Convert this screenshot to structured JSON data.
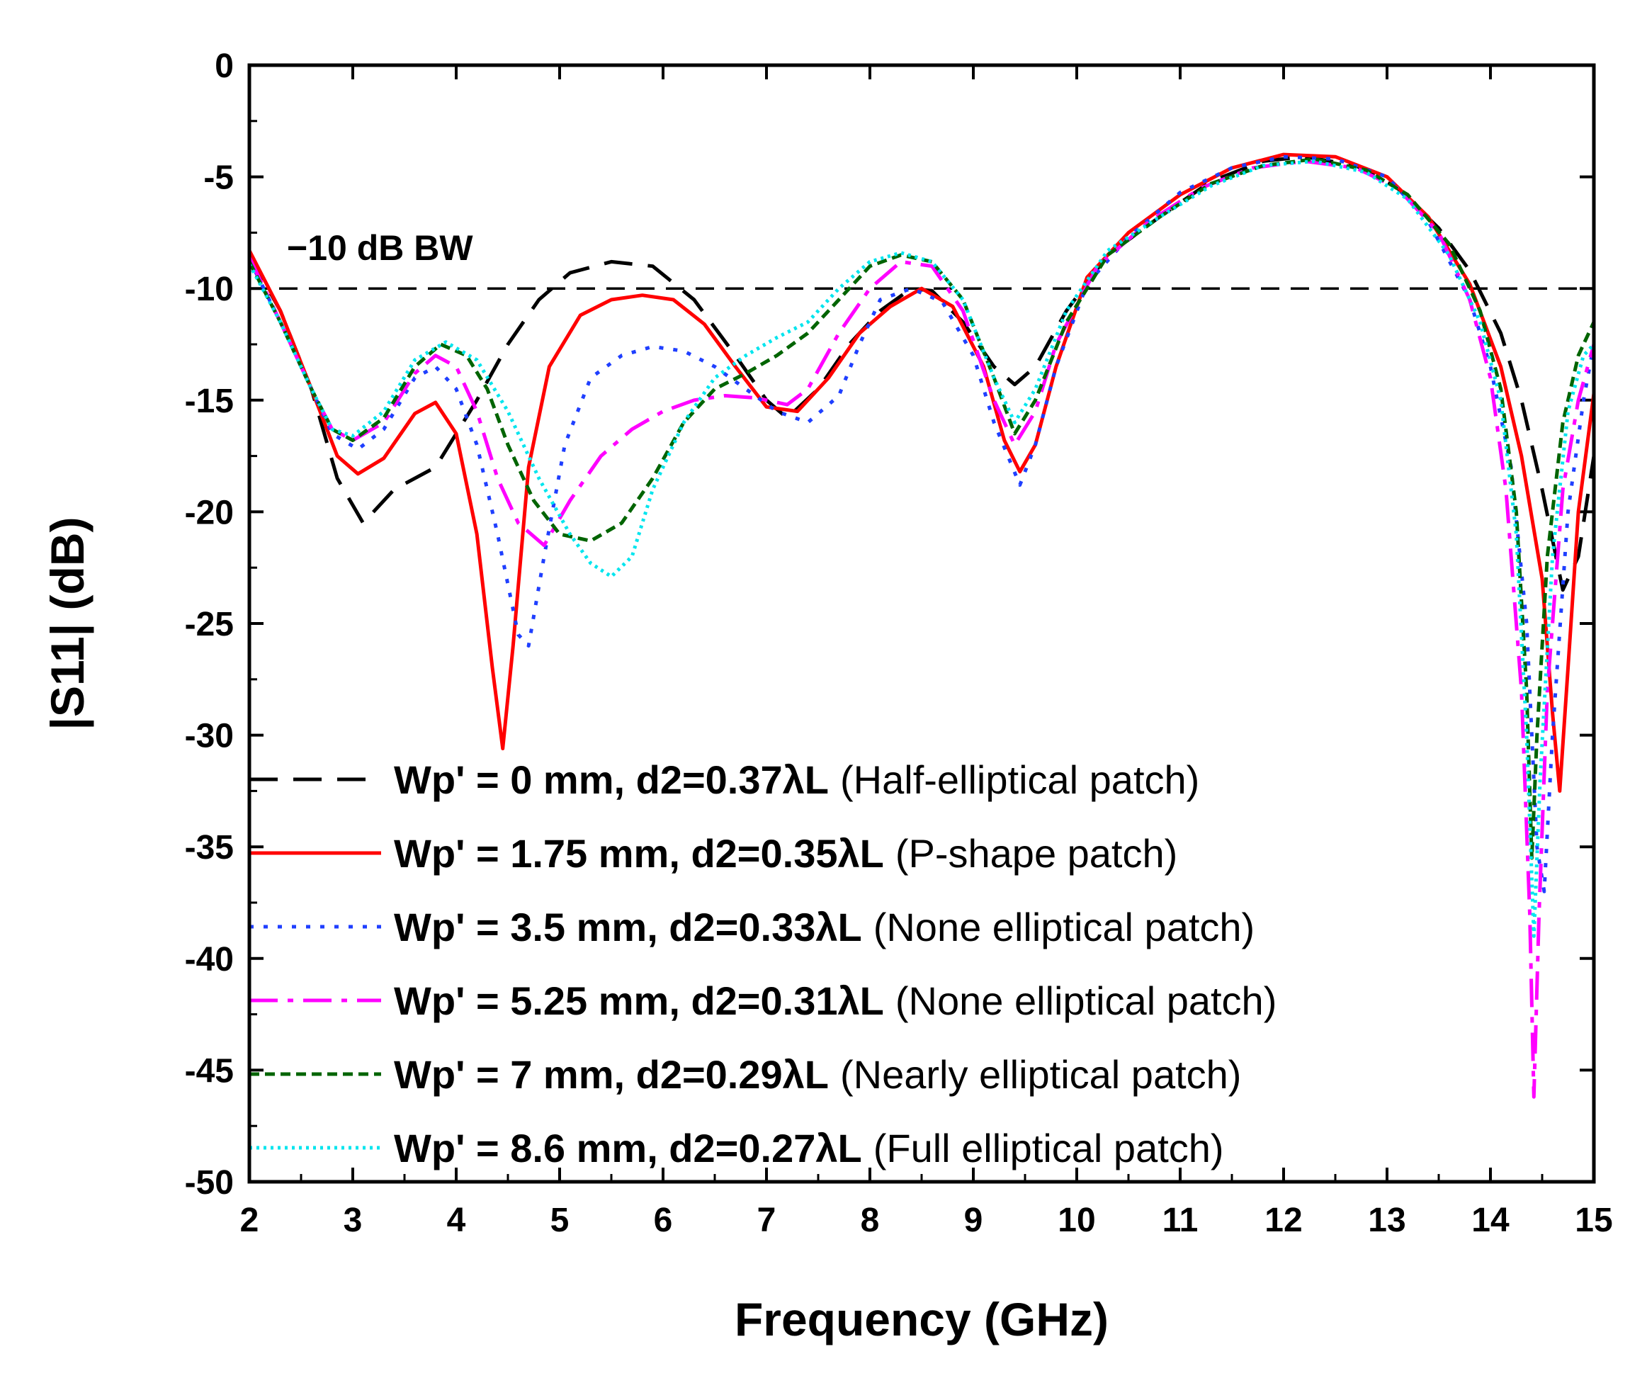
{
  "chart_data": {
    "type": "line",
    "title": "",
    "xlabel": "Frequency (GHz)",
    "ylabel": "|S11| (dB)",
    "xlim": [
      2,
      15
    ],
    "ylim": [
      -50,
      0
    ],
    "xticks": [
      "2",
      "3",
      "4",
      "5",
      "6",
      "7",
      "8",
      "9",
      "10",
      "11",
      "12",
      "13",
      "14",
      "15"
    ],
    "yticks": [
      "0",
      "-5",
      "-10",
      "-15",
      "-20",
      "-25",
      "-30",
      "-35",
      "-40",
      "-45",
      "-50"
    ],
    "reference_line": {
      "label": "−10 dB BW",
      "y": -10
    },
    "series": [
      {
        "bold": "Wp' = 0 mm, d2=0.37λL",
        "desc": "(Half-elliptical patch)",
        "color": "#000000",
        "dash": "40 22",
        "points": [
          [
            2.0,
            -8.5
          ],
          [
            2.3,
            -11.0
          ],
          [
            2.6,
            -14.5
          ],
          [
            2.85,
            -18.5
          ],
          [
            3.1,
            -20.5
          ],
          [
            3.4,
            -19.0
          ],
          [
            3.8,
            -18.0
          ],
          [
            4.2,
            -15.0
          ],
          [
            4.5,
            -12.5
          ],
          [
            4.8,
            -10.5
          ],
          [
            5.1,
            -9.3
          ],
          [
            5.5,
            -8.8
          ],
          [
            5.9,
            -9.0
          ],
          [
            6.3,
            -10.5
          ],
          [
            6.7,
            -13.0
          ],
          [
            7.0,
            -15.0
          ],
          [
            7.2,
            -15.8
          ],
          [
            7.5,
            -14.5
          ],
          [
            7.8,
            -12.5
          ],
          [
            8.1,
            -11.0
          ],
          [
            8.4,
            -10.0
          ],
          [
            8.6,
            -10.1
          ],
          [
            8.9,
            -11.5
          ],
          [
            9.2,
            -13.5
          ],
          [
            9.4,
            -14.3
          ],
          [
            9.6,
            -13.5
          ],
          [
            9.9,
            -11.0
          ],
          [
            10.3,
            -8.5
          ],
          [
            10.8,
            -6.8
          ],
          [
            11.3,
            -5.2
          ],
          [
            11.8,
            -4.3
          ],
          [
            12.2,
            -4.1
          ],
          [
            12.7,
            -4.5
          ],
          [
            13.1,
            -5.5
          ],
          [
            13.5,
            -7.3
          ],
          [
            13.8,
            -9.2
          ],
          [
            14.1,
            -12.0
          ],
          [
            14.3,
            -15.0
          ],
          [
            14.5,
            -19.0
          ],
          [
            14.7,
            -23.5
          ],
          [
            14.85,
            -22.0
          ],
          [
            15.0,
            -17.5
          ]
        ]
      },
      {
        "bold": "Wp' = 1.75 mm, d2=0.35λL",
        "desc": "(P-shape patch)",
        "color": "#ff0000",
        "dash": "",
        "points": [
          [
            2.0,
            -8.3
          ],
          [
            2.3,
            -11.0
          ],
          [
            2.6,
            -14.5
          ],
          [
            2.85,
            -17.5
          ],
          [
            3.05,
            -18.3
          ],
          [
            3.3,
            -17.6
          ],
          [
            3.6,
            -15.6
          ],
          [
            3.8,
            -15.1
          ],
          [
            4.0,
            -16.5
          ],
          [
            4.2,
            -21.0
          ],
          [
            4.35,
            -27.0
          ],
          [
            4.45,
            -30.6
          ],
          [
            4.55,
            -26.0
          ],
          [
            4.7,
            -18.0
          ],
          [
            4.9,
            -13.5
          ],
          [
            5.2,
            -11.2
          ],
          [
            5.5,
            -10.5
          ],
          [
            5.8,
            -10.3
          ],
          [
            6.1,
            -10.5
          ],
          [
            6.4,
            -11.6
          ],
          [
            6.7,
            -13.5
          ],
          [
            7.0,
            -15.3
          ],
          [
            7.3,
            -15.5
          ],
          [
            7.6,
            -14.0
          ],
          [
            7.9,
            -12.0
          ],
          [
            8.2,
            -10.8
          ],
          [
            8.5,
            -10.0
          ],
          [
            8.8,
            -10.8
          ],
          [
            9.1,
            -13.5
          ],
          [
            9.3,
            -16.8
          ],
          [
            9.45,
            -18.2
          ],
          [
            9.6,
            -17.0
          ],
          [
            9.8,
            -13.5
          ],
          [
            10.1,
            -9.5
          ],
          [
            10.5,
            -7.5
          ],
          [
            11.0,
            -5.8
          ],
          [
            11.5,
            -4.6
          ],
          [
            12.0,
            -4.0
          ],
          [
            12.5,
            -4.1
          ],
          [
            13.0,
            -5.0
          ],
          [
            13.4,
            -6.8
          ],
          [
            13.8,
            -9.8
          ],
          [
            14.1,
            -13.5
          ],
          [
            14.3,
            -17.5
          ],
          [
            14.5,
            -23.0
          ],
          [
            14.6,
            -29.0
          ],
          [
            14.67,
            -32.5
          ],
          [
            14.75,
            -27.0
          ],
          [
            14.85,
            -20.0
          ],
          [
            15.0,
            -14.7
          ]
        ]
      },
      {
        "bold": "Wp' = 3.5 mm, d2=0.33λL",
        "desc": "(None elliptical patch)",
        "color": "#1f3fff",
        "dash": "6 14",
        "points": [
          [
            2.0,
            -8.7
          ],
          [
            2.3,
            -11.5
          ],
          [
            2.6,
            -14.5
          ],
          [
            2.8,
            -16.5
          ],
          [
            3.05,
            -17.2
          ],
          [
            3.3,
            -16.3
          ],
          [
            3.6,
            -14.0
          ],
          [
            3.8,
            -13.5
          ],
          [
            4.0,
            -14.5
          ],
          [
            4.2,
            -17.0
          ],
          [
            4.4,
            -21.0
          ],
          [
            4.6,
            -25.5
          ],
          [
            4.7,
            -26.0
          ],
          [
            4.85,
            -22.0
          ],
          [
            5.05,
            -17.0
          ],
          [
            5.3,
            -14.0
          ],
          [
            5.6,
            -13.0
          ],
          [
            5.9,
            -12.6
          ],
          [
            6.2,
            -12.8
          ],
          [
            6.5,
            -13.5
          ],
          [
            6.8,
            -14.5
          ],
          [
            7.1,
            -15.5
          ],
          [
            7.4,
            -16.0
          ],
          [
            7.7,
            -14.8
          ],
          [
            7.9,
            -12.5
          ],
          [
            8.1,
            -10.5
          ],
          [
            8.4,
            -10.0
          ],
          [
            8.7,
            -10.6
          ],
          [
            9.0,
            -13.0
          ],
          [
            9.2,
            -16.0
          ],
          [
            9.45,
            -18.8
          ],
          [
            9.6,
            -17.0
          ],
          [
            9.8,
            -13.5
          ],
          [
            10.1,
            -9.8
          ],
          [
            10.5,
            -7.7
          ],
          [
            11.0,
            -5.7
          ],
          [
            11.5,
            -4.6
          ],
          [
            12.0,
            -4.1
          ],
          [
            12.5,
            -4.2
          ],
          [
            13.0,
            -5.0
          ],
          [
            13.4,
            -7.0
          ],
          [
            13.8,
            -10.5
          ],
          [
            14.0,
            -13.5
          ],
          [
            14.2,
            -18.0
          ],
          [
            14.35,
            -25.0
          ],
          [
            14.45,
            -35.0
          ],
          [
            14.52,
            -37.0
          ],
          [
            14.6,
            -30.0
          ],
          [
            14.75,
            -20.0
          ],
          [
            14.9,
            -15.0
          ],
          [
            15.0,
            -12.5
          ]
        ]
      },
      {
        "bold": "Wp' = 5.25 mm, d2=0.31λL",
        "desc": "(None elliptical patch)",
        "color": "#ff00ff",
        "dash": "40 14 8 14",
        "points": [
          [
            2.0,
            -8.6
          ],
          [
            2.3,
            -11.5
          ],
          [
            2.6,
            -14.5
          ],
          [
            2.8,
            -16.3
          ],
          [
            3.0,
            -16.8
          ],
          [
            3.3,
            -16.0
          ],
          [
            3.6,
            -13.8
          ],
          [
            3.8,
            -13.0
          ],
          [
            4.0,
            -13.5
          ],
          [
            4.2,
            -15.5
          ],
          [
            4.4,
            -18.5
          ],
          [
            4.6,
            -20.5
          ],
          [
            4.85,
            -21.5
          ],
          [
            5.1,
            -19.5
          ],
          [
            5.4,
            -17.5
          ],
          [
            5.7,
            -16.3
          ],
          [
            6.0,
            -15.5
          ],
          [
            6.3,
            -15.0
          ],
          [
            6.6,
            -14.8
          ],
          [
            6.9,
            -14.9
          ],
          [
            7.2,
            -15.2
          ],
          [
            7.4,
            -14.5
          ],
          [
            7.7,
            -12.0
          ],
          [
            8.0,
            -10.0
          ],
          [
            8.3,
            -8.8
          ],
          [
            8.6,
            -9.0
          ],
          [
            8.9,
            -11.0
          ],
          [
            9.2,
            -15.0
          ],
          [
            9.4,
            -17.0
          ],
          [
            9.6,
            -15.5
          ],
          [
            9.8,
            -12.5
          ],
          [
            10.2,
            -9.0
          ],
          [
            10.7,
            -7.0
          ],
          [
            11.2,
            -5.5
          ],
          [
            11.7,
            -4.6
          ],
          [
            12.2,
            -4.3
          ],
          [
            12.7,
            -4.6
          ],
          [
            13.1,
            -5.5
          ],
          [
            13.5,
            -7.5
          ],
          [
            13.8,
            -10.5
          ],
          [
            14.0,
            -14.0
          ],
          [
            14.15,
            -19.0
          ],
          [
            14.3,
            -28.0
          ],
          [
            14.38,
            -38.0
          ],
          [
            14.42,
            -46.2
          ],
          [
            14.47,
            -38.0
          ],
          [
            14.55,
            -28.0
          ],
          [
            14.7,
            -19.0
          ],
          [
            14.85,
            -15.0
          ],
          [
            15.0,
            -12.5
          ]
        ]
      },
      {
        "bold": "Wp' = 7 mm, d2=0.29λL",
        "desc": "(Nearly elliptical patch)",
        "color": "#006400",
        "dash": "14 8",
        "points": [
          [
            2.0,
            -8.8
          ],
          [
            2.3,
            -11.5
          ],
          [
            2.6,
            -14.5
          ],
          [
            2.8,
            -16.3
          ],
          [
            3.0,
            -16.8
          ],
          [
            3.3,
            -15.8
          ],
          [
            3.6,
            -13.5
          ],
          [
            3.85,
            -12.5
          ],
          [
            4.1,
            -13.0
          ],
          [
            4.3,
            -14.5
          ],
          [
            4.5,
            -17.0
          ],
          [
            4.75,
            -19.5
          ],
          [
            5.0,
            -21.0
          ],
          [
            5.3,
            -21.3
          ],
          [
            5.6,
            -20.5
          ],
          [
            5.9,
            -18.5
          ],
          [
            6.2,
            -16.0
          ],
          [
            6.5,
            -14.5
          ],
          [
            6.8,
            -13.8
          ],
          [
            7.1,
            -13.0
          ],
          [
            7.4,
            -12.0
          ],
          [
            7.7,
            -10.5
          ],
          [
            8.0,
            -9.0
          ],
          [
            8.3,
            -8.5
          ],
          [
            8.6,
            -8.8
          ],
          [
            8.9,
            -10.5
          ],
          [
            9.2,
            -14.0
          ],
          [
            9.4,
            -16.5
          ],
          [
            9.6,
            -15.0
          ],
          [
            9.9,
            -11.5
          ],
          [
            10.3,
            -8.5
          ],
          [
            10.8,
            -6.8
          ],
          [
            11.3,
            -5.3
          ],
          [
            11.8,
            -4.5
          ],
          [
            12.3,
            -4.2
          ],
          [
            12.8,
            -4.7
          ],
          [
            13.2,
            -5.8
          ],
          [
            13.6,
            -8.0
          ],
          [
            13.9,
            -11.0
          ],
          [
            14.1,
            -14.5
          ],
          [
            14.25,
            -20.0
          ],
          [
            14.35,
            -28.0
          ],
          [
            14.4,
            -35.5
          ],
          [
            14.45,
            -30.0
          ],
          [
            14.55,
            -22.0
          ],
          [
            14.7,
            -16.0
          ],
          [
            14.85,
            -13.0
          ],
          [
            15.0,
            -11.5
          ]
        ]
      },
      {
        "bold": "Wp' = 8.6 mm, d2=0.27λL",
        "desc": "(Full elliptical patch)",
        "color": "#00e5ee",
        "dash": "4 6",
        "points": [
          [
            2.0,
            -8.9
          ],
          [
            2.3,
            -11.5
          ],
          [
            2.6,
            -14.5
          ],
          [
            2.8,
            -16.3
          ],
          [
            3.0,
            -16.6
          ],
          [
            3.3,
            -15.5
          ],
          [
            3.6,
            -13.2
          ],
          [
            3.9,
            -12.4
          ],
          [
            4.2,
            -13.2
          ],
          [
            4.5,
            -15.5
          ],
          [
            4.8,
            -18.5
          ],
          [
            5.1,
            -21.0
          ],
          [
            5.3,
            -22.3
          ],
          [
            5.5,
            -22.9
          ],
          [
            5.7,
            -22.0
          ],
          [
            5.9,
            -19.0
          ],
          [
            6.2,
            -16.0
          ],
          [
            6.5,
            -14.0
          ],
          [
            6.8,
            -13.0
          ],
          [
            7.1,
            -12.2
          ],
          [
            7.4,
            -11.5
          ],
          [
            7.7,
            -10.0
          ],
          [
            8.0,
            -8.8
          ],
          [
            8.3,
            -8.4
          ],
          [
            8.6,
            -8.8
          ],
          [
            8.9,
            -10.5
          ],
          [
            9.2,
            -14.0
          ],
          [
            9.4,
            -16.0
          ],
          [
            9.6,
            -14.5
          ],
          [
            9.9,
            -11.0
          ],
          [
            10.3,
            -8.3
          ],
          [
            10.8,
            -6.8
          ],
          [
            11.3,
            -5.4
          ],
          [
            11.8,
            -4.5
          ],
          [
            12.3,
            -4.3
          ],
          [
            12.8,
            -4.8
          ],
          [
            13.2,
            -6.0
          ],
          [
            13.6,
            -8.5
          ],
          [
            13.9,
            -11.5
          ],
          [
            14.1,
            -15.0
          ],
          [
            14.25,
            -21.0
          ],
          [
            14.35,
            -30.0
          ],
          [
            14.42,
            -39.0
          ],
          [
            14.48,
            -32.0
          ],
          [
            14.6,
            -22.0
          ],
          [
            14.75,
            -15.5
          ],
          [
            14.9,
            -13.0
          ],
          [
            15.0,
            -12.5
          ]
        ]
      }
    ]
  }
}
